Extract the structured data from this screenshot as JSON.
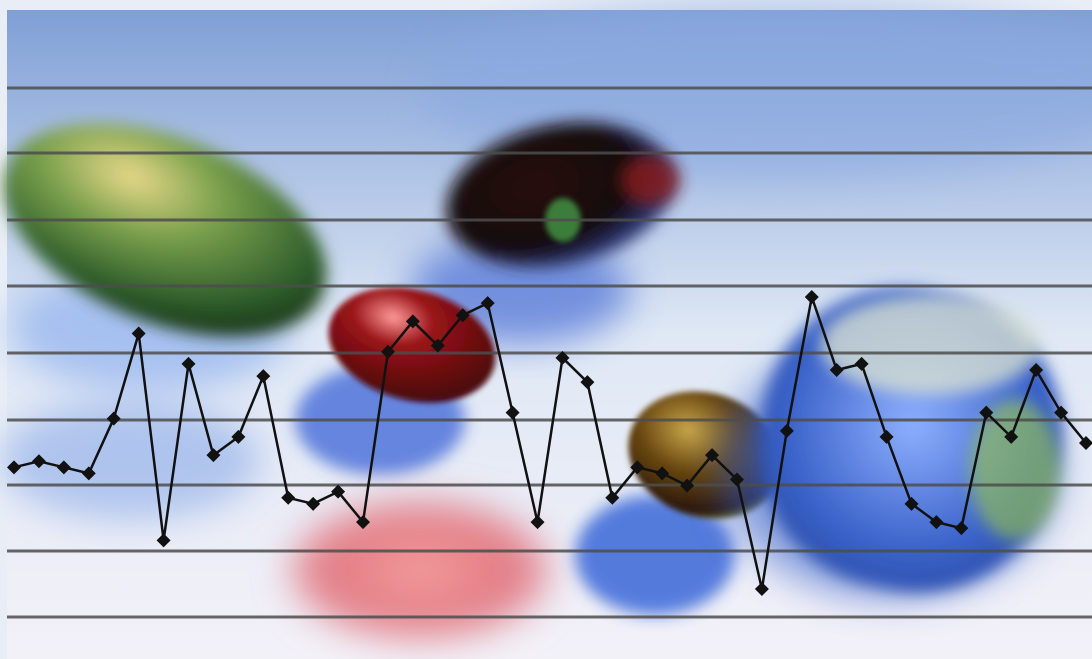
{
  "image": {
    "subject": "pills-with-line-chart-overlay",
    "colors": {
      "frame": "#e9eef6",
      "sky_top": "#7f9fd6",
      "sky_mid": "#dfe8f5",
      "sky_bottom": "#f3f1f8",
      "gridline": "#4d4d4d",
      "series_line": "#111111",
      "marker": "#111111",
      "pill_green": "#3f7a3a",
      "pill_red": "#7a0c10",
      "pill_dark": "#2a0d0d",
      "pill_amber": "#7a5a12",
      "pill_blue": "#3a62c9",
      "pill_pink": "#e48080"
    }
  },
  "chart_data": {
    "type": "line",
    "grid": "horizontal",
    "gridline_count": 9,
    "marker": "diamond",
    "ylim": [
      0,
      100
    ],
    "values": [
      52,
      53,
      52,
      51,
      60,
      74,
      40,
      69,
      54,
      57,
      67,
      47,
      46,
      48,
      43,
      71,
      76,
      72,
      77,
      79,
      61,
      43,
      70,
      66,
      47,
      52,
      51,
      49,
      54,
      50,
      32,
      58,
      80,
      68,
      69,
      57,
      46,
      43,
      42,
      61,
      57,
      68,
      61,
      56
    ]
  }
}
